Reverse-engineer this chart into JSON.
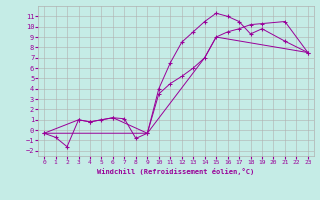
{
  "xlabel": "Windchill (Refroidissement éolien,°C)",
  "xlim": [
    -0.5,
    23.5
  ],
  "ylim": [
    -2.5,
    12
  ],
  "xticks": [
    0,
    1,
    2,
    3,
    4,
    5,
    6,
    7,
    8,
    9,
    10,
    11,
    12,
    13,
    14,
    15,
    16,
    17,
    18,
    19,
    20,
    21,
    22,
    23
  ],
  "yticks": [
    -2,
    -1,
    0,
    1,
    2,
    3,
    4,
    5,
    6,
    7,
    8,
    9,
    10,
    11
  ],
  "background_color": "#c5ece6",
  "grid_color": "#b0b0b0",
  "line_color": "#990099",
  "curve1_x": [
    0,
    1,
    2,
    3,
    4,
    5,
    6,
    7,
    8,
    9,
    10,
    11,
    12,
    13,
    14,
    15,
    16,
    17,
    18,
    19,
    21,
    23
  ],
  "curve1_y": [
    -0.3,
    -0.7,
    -1.6,
    1.0,
    0.8,
    1.0,
    1.2,
    1.1,
    -0.8,
    -0.3,
    4.0,
    6.5,
    8.5,
    9.5,
    10.5,
    11.3,
    11.0,
    10.5,
    9.3,
    9.8,
    8.6,
    7.5
  ],
  "curve2_x": [
    0,
    3,
    4,
    6,
    9,
    10,
    11,
    12,
    13,
    14,
    15,
    16,
    17,
    18,
    19,
    21,
    23
  ],
  "curve2_y": [
    -0.3,
    1.0,
    0.8,
    1.2,
    -0.3,
    3.5,
    4.5,
    5.2,
    6.0,
    7.0,
    9.0,
    9.5,
    9.8,
    10.2,
    10.3,
    10.5,
    7.5
  ],
  "curve3_x": [
    0,
    9,
    14,
    15,
    23
  ],
  "curve3_y": [
    -0.3,
    -0.3,
    7.0,
    9.0,
    7.5
  ]
}
